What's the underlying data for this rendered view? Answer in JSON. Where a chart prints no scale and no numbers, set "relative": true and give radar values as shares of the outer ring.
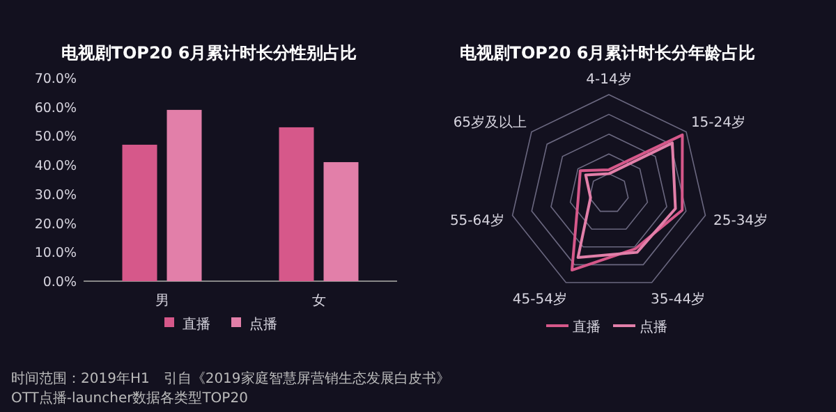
{
  "chart_data": [
    {
      "type": "bar",
      "title": "电视剧TOP20 6月累计时长分性别占比",
      "categories": [
        "男",
        "女"
      ],
      "series": [
        {
          "name": "直播",
          "color": "#d6588a",
          "values": [
            47,
            53
          ]
        },
        {
          "name": "点播",
          "color": "#e27fa9",
          "values": [
            59,
            41
          ]
        }
      ],
      "ylim": [
        0,
        70
      ],
      "yticks": [
        {
          "value": 0,
          "label": "0.0%"
        },
        {
          "value": 10,
          "label": "10.0%"
        },
        {
          "value": 20,
          "label": "20.0%"
        },
        {
          "value": 30,
          "label": "30.0%"
        },
        {
          "value": 40,
          "label": "40.0%"
        },
        {
          "value": 50,
          "label": "50.0%"
        },
        {
          "value": 60,
          "label": "60.0%"
        },
        {
          "value": 70,
          "label": "70.0%"
        }
      ],
      "legend": "bottom",
      "annotations": [
        "时间范围：2019年H1　引自《2019家庭智慧屏营销生态发展白皮书》",
        "OTT点播-launcher数据各类型TOP20"
      ]
    },
    {
      "type": "radar",
      "title": "电视剧TOP20 6月累计时长分年龄占比",
      "categories": [
        "4-14岁",
        "15-24岁",
        "25-34岁",
        "35-44岁",
        "45-54岁",
        "55-64岁",
        "65岁及以上"
      ],
      "relative": true,
      "grid": true,
      "series": [
        {
          "name": "直播",
          "color": "#d6588a",
          "values": [
            0.24,
            0.95,
            0.76,
            0.62,
            0.86,
            0.32,
            0.37
          ]
        },
        {
          "name": "点播",
          "color": "#e27fa9",
          "values": [
            0.2,
            0.82,
            0.69,
            0.66,
            0.72,
            0.19,
            0.3
          ]
        }
      ],
      "legend": "bottom"
    }
  ]
}
